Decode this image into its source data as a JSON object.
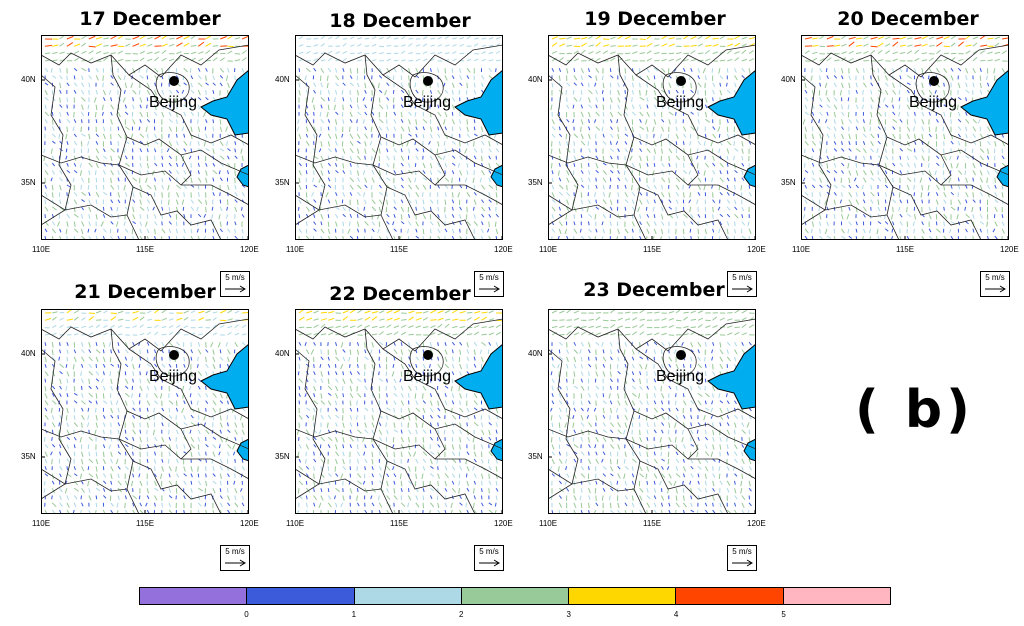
{
  "panels": [
    {
      "title": "17 December",
      "strong_north": [
        5,
        4,
        3
      ]
    },
    {
      "title": "18 December",
      "strong_north": [
        2,
        2,
        2
      ]
    },
    {
      "title": "19 December",
      "strong_north": [
        4,
        4,
        3
      ]
    },
    {
      "title": "20 December",
      "strong_north": [
        5,
        4,
        3
      ]
    },
    {
      "title": "21 December",
      "strong_north": [
        4,
        3,
        2
      ]
    },
    {
      "title": "22 December",
      "strong_north": [
        4,
        4,
        3
      ]
    },
    {
      "title": "23 December",
      "strong_north": [
        3,
        3,
        3
      ]
    }
  ],
  "city_label": "Beijing",
  "x_ticks": [
    "110E",
    "115E",
    "120E"
  ],
  "y_ticks": [
    "40N",
    "35N"
  ],
  "ref_vector_label": "5 m/s",
  "panel_letter": "( b)",
  "colorbar": {
    "colors": [
      "#9370db",
      "#3b5bdb",
      "#add8e6",
      "#98c998",
      "#ffd700",
      "#ff4500",
      "#ffb6c1"
    ],
    "labels": [
      "0",
      "1",
      "2",
      "3",
      "4",
      "5"
    ]
  },
  "colors": {
    "sea": "#00aeef",
    "boundary": "#222222",
    "city_marker": "#000000"
  }
}
